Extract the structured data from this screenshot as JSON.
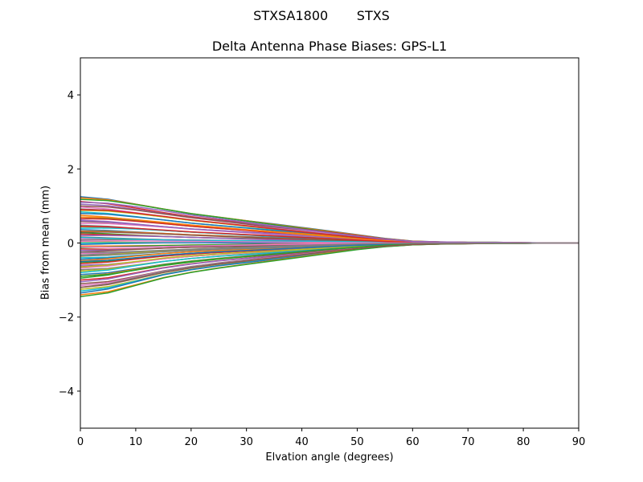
{
  "figure": {
    "suptitle": "STXSA1800       STXS",
    "title": "Delta Antenna Phase Biases: GPS-L1",
    "xlabel": "Elvation angle (degrees)",
    "ylabel": "Bias from mean (mm)"
  },
  "chart_data": {
    "type": "line",
    "title": "Delta Antenna Phase Biases: GPS-L1",
    "suptitle": "STXSA1800       STXS",
    "xlabel": "Elvation angle (degrees)",
    "ylabel": "Bias from mean (mm)",
    "xlim": [
      0,
      90
    ],
    "ylim": [
      -5,
      5
    ],
    "xticks": [
      0,
      10,
      20,
      30,
      40,
      50,
      60,
      70,
      80,
      90
    ],
    "yticks": [
      -4,
      -2,
      0,
      2,
      4
    ],
    "grid": false,
    "legend": null,
    "x": [
      0,
      5,
      10,
      15,
      20,
      25,
      30,
      35,
      40,
      45,
      50,
      55,
      60,
      65,
      70,
      75,
      80,
      85,
      90
    ],
    "envelope": {
      "upper": [
        1.25,
        1.2,
        1.08,
        0.95,
        0.82,
        0.72,
        0.62,
        0.52,
        0.42,
        0.32,
        0.22,
        0.12,
        0.05,
        0.03,
        0.02,
        0.02,
        0.01,
        0.0,
        0.0
      ],
      "lower": [
        -1.45,
        -1.35,
        -1.15,
        -0.95,
        -0.8,
        -0.68,
        -0.58,
        -0.48,
        -0.38,
        -0.28,
        -0.18,
        -0.1,
        -0.05,
        -0.03,
        -0.02,
        -0.01,
        -0.01,
        0.0,
        0.0
      ]
    },
    "series_note": "Approximately 80 overlapping per-satellite curves in matplotlib tab10 colors; start values at 0 deg spread between -1.45 and 1.25 mm and all converge to ~0 mm by 65-90 deg.",
    "start_values": [
      1.25,
      1.22,
      1.18,
      1.12,
      1.05,
      1.0,
      0.97,
      0.92,
      0.88,
      0.84,
      0.8,
      0.75,
      0.7,
      0.66,
      0.62,
      0.58,
      0.53,
      0.48,
      0.44,
      0.4,
      0.36,
      0.32,
      0.28,
      0.24,
      0.2,
      0.16,
      0.12,
      0.08,
      0.04,
      0.0,
      -0.04,
      -0.08,
      -0.12,
      -0.16,
      -0.2,
      -0.24,
      -0.28,
      -0.32,
      -0.36,
      -0.4,
      -0.44,
      -0.48,
      -0.52,
      -0.56,
      -0.6,
      -0.64,
      -0.68,
      -0.72,
      -0.76,
      -0.8,
      -0.85,
      -0.9,
      -0.95,
      -1.0,
      -1.05,
      -1.1,
      -1.15,
      -1.2,
      -1.25,
      -1.3,
      -1.35,
      -1.4,
      -1.45,
      0.9,
      0.6,
      0.3,
      -0.1,
      -0.35,
      -0.65,
      0.15,
      -0.5,
      0.7,
      -0.9,
      0.45,
      1.1,
      -1.2,
      0.05,
      -0.25
    ],
    "colors": [
      "#1f77b4",
      "#ff7f0e",
      "#2ca02c",
      "#d62728",
      "#9467bd",
      "#8c564b",
      "#e377c2",
      "#7f7f7f",
      "#bcbd22",
      "#17becf"
    ]
  }
}
